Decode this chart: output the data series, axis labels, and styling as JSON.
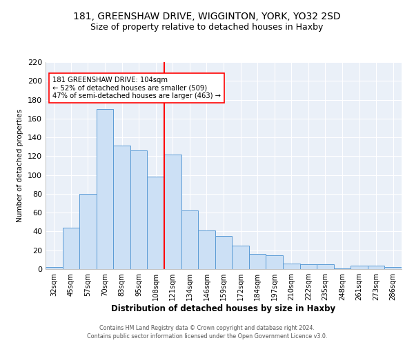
{
  "title1": "181, GREENSHAW DRIVE, WIGGINTON, YORK, YO32 2SD",
  "title2": "Size of property relative to detached houses in Haxby",
  "xlabel": "Distribution of detached houses by size in Haxby",
  "ylabel": "Number of detached properties",
  "categories": [
    "32sqm",
    "45sqm",
    "57sqm",
    "70sqm",
    "83sqm",
    "95sqm",
    "108sqm",
    "121sqm",
    "134sqm",
    "146sqm",
    "159sqm",
    "172sqm",
    "184sqm",
    "197sqm",
    "210sqm",
    "222sqm",
    "235sqm",
    "248sqm",
    "261sqm",
    "273sqm",
    "286sqm"
  ],
  "values": [
    2,
    44,
    80,
    170,
    131,
    126,
    98,
    122,
    62,
    41,
    35,
    25,
    16,
    15,
    6,
    5,
    5,
    1,
    4,
    4,
    2
  ],
  "bar_color": "#cce0f5",
  "bar_edge_color": "#5b9bd5",
  "vline_x": 6.5,
  "vline_color": "red",
  "annotation_title": "181 GREENSHAW DRIVE: 104sqm",
  "annotation_line1": "← 52% of detached houses are smaller (509)",
  "annotation_line2": "47% of semi-detached houses are larger (463) →",
  "annotation_box_color": "white",
  "annotation_box_edge": "red",
  "ylim": [
    0,
    220
  ],
  "yticks": [
    0,
    20,
    40,
    60,
    80,
    100,
    120,
    140,
    160,
    180,
    200,
    220
  ],
  "footnote1": "Contains HM Land Registry data © Crown copyright and database right 2024.",
  "footnote2": "Contains public sector information licensed under the Open Government Licence v3.0.",
  "bg_color": "#eaf0f8",
  "grid_color": "white",
  "title1_fontsize": 10,
  "title2_fontsize": 9
}
